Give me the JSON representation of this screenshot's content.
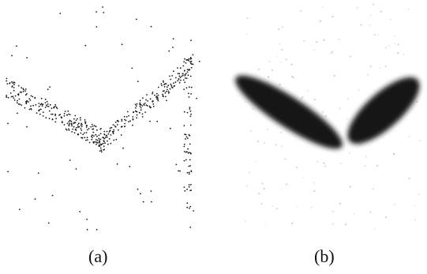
{
  "figure": {
    "panels": [
      {
        "label": "(a)"
      },
      {
        "label": "(b)"
      }
    ],
    "colors": {
      "ink": "#111111",
      "dot": "#1a1a1a",
      "blob": "#141414",
      "background": "#ffffff"
    }
  }
}
